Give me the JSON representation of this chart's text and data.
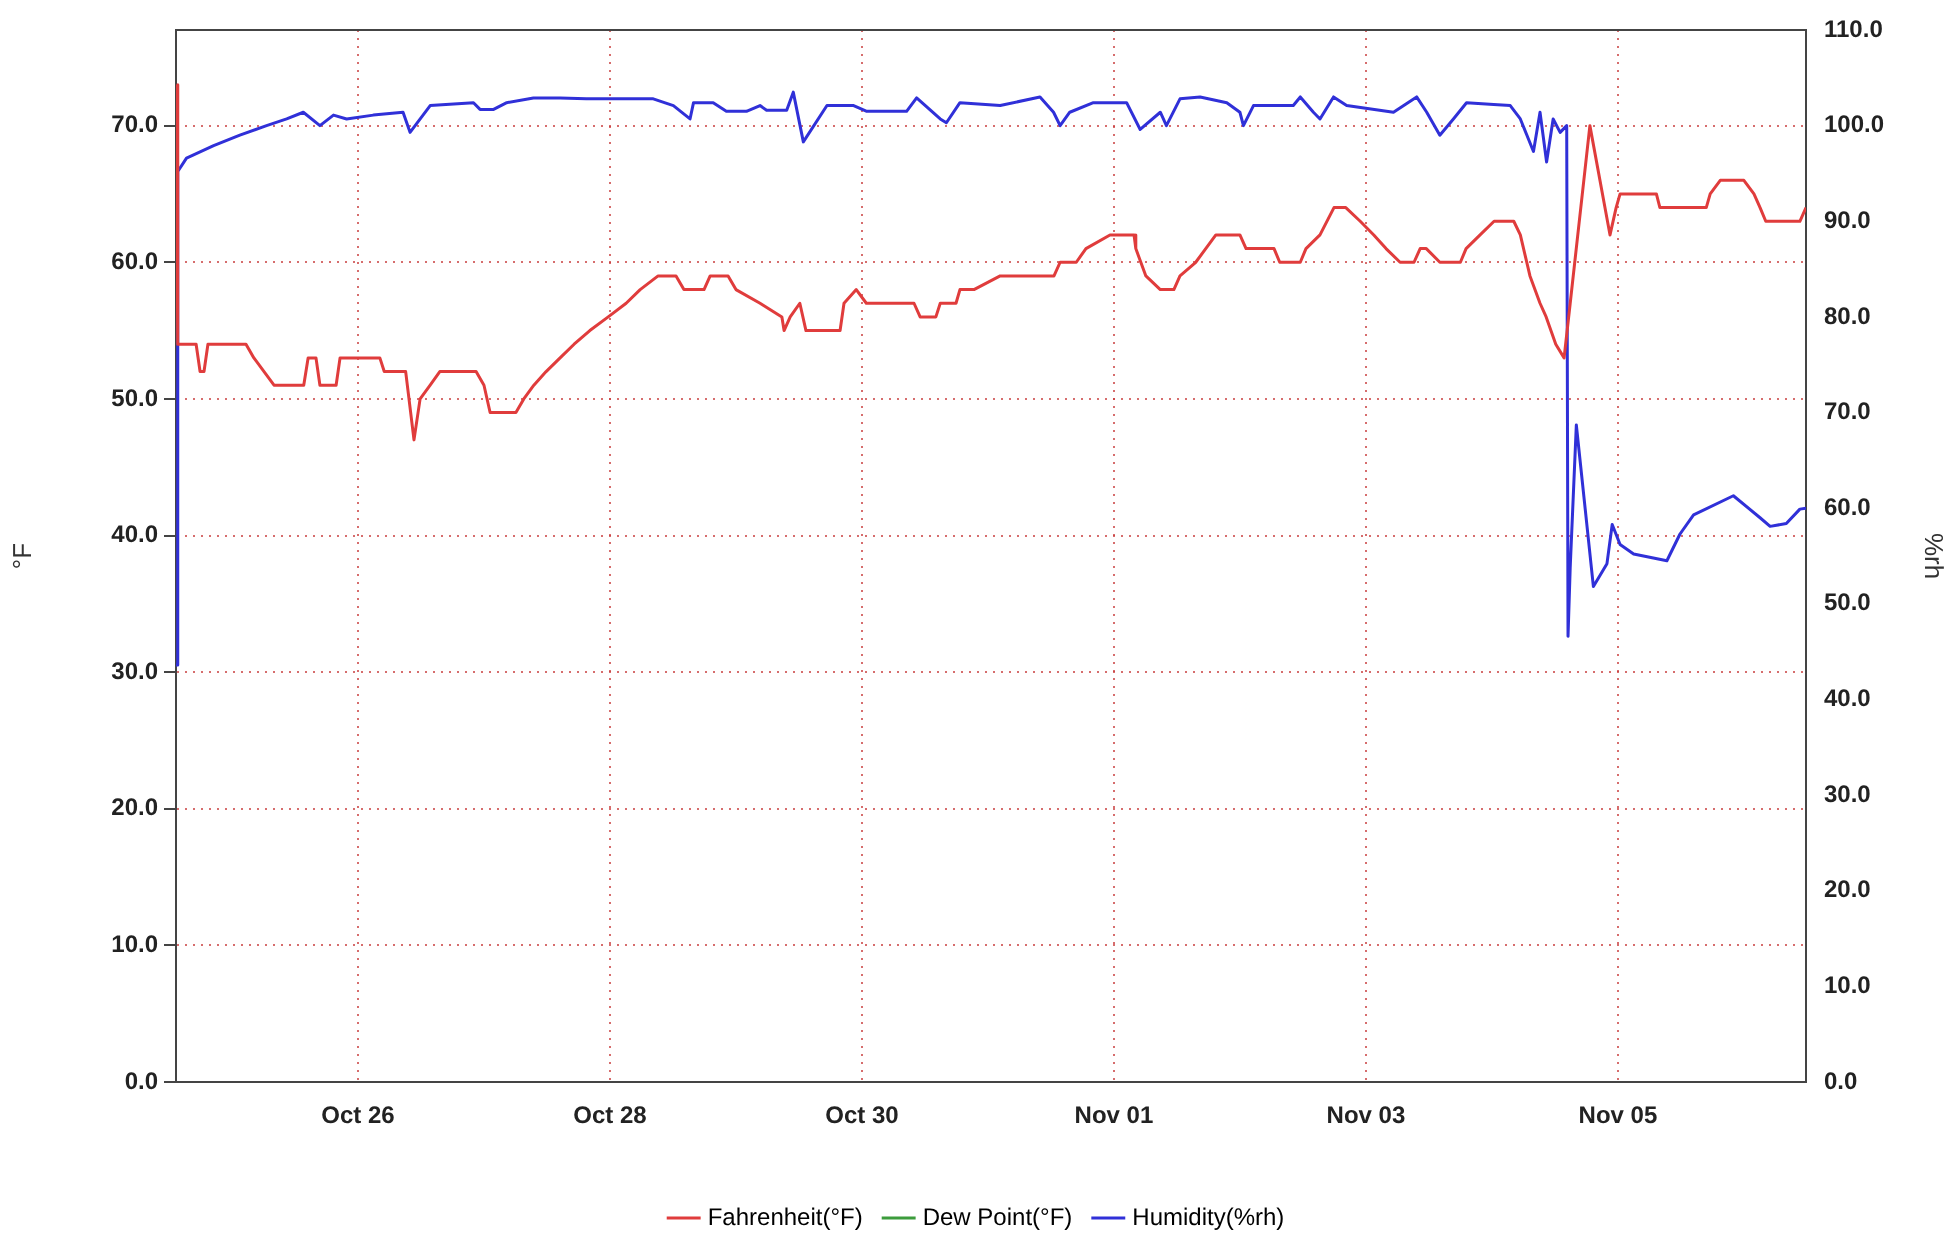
{
  "chart_data": {
    "type": "line",
    "ylabel": "°F",
    "y2label": "%rh",
    "xlim": [
      "--10-24T13:20",
      "--11-06T11:50"
    ],
    "xticks": [
      {
        "value": "--10-26",
        "label": "Oct 26"
      },
      {
        "value": "--10-28",
        "label": "Oct 28"
      },
      {
        "value": "--10-30",
        "label": "Oct 30"
      },
      {
        "value": "--11-01",
        "label": "Nov 01"
      },
      {
        "value": "--11-03",
        "label": "Nov 03"
      },
      {
        "value": "--11-05",
        "label": "Nov 05"
      }
    ],
    "ylim": [
      0,
      77
    ],
    "yticks": [
      {
        "value": 0,
        "label": "0.0"
      },
      {
        "value": 10,
        "label": "10.0"
      },
      {
        "value": 20,
        "label": "20.0"
      },
      {
        "value": 30,
        "label": "30.0"
      },
      {
        "value": 40,
        "label": "40.0"
      },
      {
        "value": 50,
        "label": "50.0"
      },
      {
        "value": 60,
        "label": "60.0"
      },
      {
        "value": 70,
        "label": "70.0"
      }
    ],
    "y2lim": [
      0,
      110
    ],
    "y2ticks": [
      {
        "value": 0,
        "label": "0.0"
      },
      {
        "value": 10,
        "label": "10.0"
      },
      {
        "value": 20,
        "label": "20.0"
      },
      {
        "value": 30,
        "label": "30.0"
      },
      {
        "value": 40,
        "label": "40.0"
      },
      {
        "value": 50,
        "label": "50.0"
      },
      {
        "value": 60,
        "label": "60.0"
      },
      {
        "value": 70,
        "label": "70.0"
      },
      {
        "value": 80,
        "label": "80.0"
      },
      {
        "value": 90,
        "label": "90.0"
      },
      {
        "value": 100,
        "label": "100.0"
      },
      {
        "value": 110,
        "label": "110.0"
      }
    ],
    "grid": true,
    "legend": "bottom",
    "marker": "none",
    "line_style": "solid",
    "series": [
      {
        "name": "Fahrenheit(°F)",
        "color": "#e03c3c",
        "x": [
          "--10-24T13:20",
          "--10-24T13:40",
          "--10-24T17:10",
          "--10-24T17:55",
          "--10-24T18:40",
          "--10-24T19:25",
          "--10-25T02:40",
          "--10-25T04:10",
          "--10-25T08:00",
          "--10-25T13:40",
          "--10-25T14:30",
          "--10-25T16:00",
          "--10-25T16:45",
          "--10-25T19:50",
          "--10-25T20:35",
          "--10-26T04:10",
          "--10-26T05:00",
          "--10-26T09:05",
          "--10-26T10:40",
          "--10-26T11:50",
          "--10-26T13:45",
          "--10-26T15:35",
          "--10-26T22:30",
          "--10-27T00:00",
          "--10-27T01:10",
          "--10-27T06:05",
          "--10-27T07:35",
          "--10-27T09:30",
          "--10-27T11:50",
          "--10-27T14:30",
          "--10-27T17:10",
          "--10-27T20:10",
          "--10-27T23:40",
          "--10-28T03:05",
          "--10-28T05:45",
          "--10-28T09:10",
          "--10-28T12:35",
          "--10-28T14:05",
          "--10-28T17:55",
          "--10-28T19:05",
          "--10-28T22:30",
          "--10-29T00:00",
          "--10-29T04:35",
          "--10-29T08:45",
          "--10-29T09:10",
          "--10-29T10:20",
          "--10-29T12:10",
          "--10-29T13:20",
          "--10-29T19:50",
          "--10-29T20:35",
          "--10-29T22:55",
          "--10-30T00:50",
          "--10-30T09:55",
          "--10-30T11:05",
          "--10-30T14:05",
          "--10-30T14:55",
          "--10-30T17:55",
          "--10-30T18:40",
          "--10-30T21:20",
          "--10-31T02:20",
          "--10-31T12:35",
          "--10-31T13:45",
          "--10-31T16:50",
          "--10-31T18:40",
          "--10-31T23:15",
          "--11-01T03:50",
          "--11-01T04:10",
          "--11-01T06:05",
          "--11-01T08:50",
          "--11-01T11:25",
          "--11-01T12:35",
          "--11-01T15:35",
          "--11-01T19:25",
          "--11-02T00:00",
          "--11-02T01:10",
          "--11-02T06:30",
          "--11-02T07:35",
          "--11-02T11:30",
          "--11-02T12:35",
          "--11-02T15:15",
          "--11-02T17:55",
          "--11-02T20:10",
          "--11-02T22:55",
          "--11-03T01:30",
          "--11-03T03:50",
          "--11-03T06:30",
          "--11-03T09:10",
          "--11-03T10:20",
          "--11-03T11:30",
          "--11-03T14:05",
          "--11-03T18:00",
          "--11-03T19:05",
          "--11-03T21:45",
          "--11-04T00:25",
          "--11-04T04:10",
          "--11-04T05:25",
          "--11-04T07:15",
          "--11-04T09:10",
          "--11-04T10:20",
          "--11-04T12:10",
          "--11-04T13:45",
          "--11-04T14:05",
          "--11-04T14:55",
          "--11-04T18:40",
          "--11-04T22:30",
          "--11-04T23:40",
          "--11-05T00:25",
          "--11-05T07:20",
          "--11-05T08:00",
          "--11-05T16:50",
          "--11-05T17:35",
          "--11-05T19:30",
          "--11-06T00:00",
          "--11-06T01:55",
          "--11-06T03:05",
          "--11-06T04:10",
          "--11-06T10:40",
          "--11-06T11:50"
        ],
        "values": [
          73,
          54,
          54,
          52,
          52,
          54,
          54,
          53,
          51,
          51,
          53,
          53,
          51,
          51,
          53,
          53,
          52,
          52,
          47,
          50,
          51,
          52,
          52,
          51,
          49,
          49,
          50,
          51,
          52,
          53,
          54,
          55,
          56,
          57,
          58,
          59,
          59,
          58,
          58,
          59,
          59,
          58,
          57,
          56,
          55,
          56,
          57,
          55,
          55,
          57,
          58,
          57,
          57,
          56,
          56,
          57,
          57,
          58,
          58,
          59,
          59,
          60,
          60,
          61,
          62,
          62,
          61,
          59,
          58,
          58,
          59,
          60,
          62,
          62,
          61,
          61,
          60,
          60,
          61,
          62,
          64,
          64,
          63,
          62,
          61,
          60,
          60,
          61,
          61,
          60,
          60,
          61,
          62,
          63,
          63,
          62,
          59,
          57,
          56,
          54,
          53,
          53,
          57,
          70,
          62,
          64,
          65,
          65,
          64,
          64,
          65,
          66,
          66,
          65,
          64,
          63,
          63,
          64
        ]
      },
      {
        "name": "Dew Point(°F)",
        "color": "#3c9c3c"
      },
      {
        "name": "Humidity(%rh)",
        "color": "#3030d8",
        "axis": "y2",
        "x": [
          "--10-24T13:20",
          "--10-24T13:40",
          "--10-24T15:20",
          "--10-24T20:30",
          "--10-25T01:30",
          "--10-25T06:35",
          "--10-25T10:25",
          "--10-25T13:35",
          "--10-25T16:45",
          "--10-25T19:20",
          "--10-25T21:50",
          "--10-26T02:55",
          "--10-26T08:35",
          "--10-26T09:55",
          "--10-26T13:45",
          "--10-26T22:00",
          "--10-26T23:15",
          "--10-27T01:50",
          "--10-27T04:20",
          "--10-27T09:25",
          "--10-27T14:30",
          "--10-27T19:30",
          "--10-28T08:15",
          "--10-28T12:05",
          "--10-28T15:15",
          "--10-28T15:55",
          "--10-28T19:40",
          "--10-28T22:10",
          "--10-29T02:00",
          "--10-29T04:35",
          "--10-29T05:50",
          "--10-29T09:40",
          "--10-29T10:55",
          "--10-29T12:50",
          "--10-29T17:20",
          "--10-29T22:25",
          "--10-30T00:55",
          "--10-30T08:30",
          "--10-30T10:25",
          "--10-30T14:55",
          "--10-30T16:05",
          "--10-30T18:40",
          "--10-31T02:20",
          "--10-31T09:55",
          "--10-31T12:30",
          "--10-31T13:45",
          "--10-31T15:35",
          "--10-31T20:05",
          "--11-01T02:25",
          "--11-01T05:00",
          "--11-01T08:50",
          "--11-01T10:00",
          "--11-01T12:35",
          "--11-01T16:25",
          "--11-01T21:30",
          "--11-02T00:00",
          "--11-02T00:40",
          "--11-02T02:35",
          "--11-02T10:10",
          "--11-02T11:30",
          "--11-02T14:00",
          "--11-02T15:15",
          "--11-02T17:50",
          "--11-02T20:20",
          "--11-03T05:15",
          "--11-03T09:40",
          "--11-03T11:35",
          "--11-03T14:05",
          "--11-03T16:40",
          "--11-03T19:10",
          "--11-04T00:20",
          "--11-04T03:30",
          "--11-04T05:25",
          "--11-04T07:55",
          "--11-04T09:10",
          "--11-04T10:25",
          "--11-04T11:40",
          "--11-04T13:00",
          "--11-04T14:15",
          "--11-04T14:30",
          "--11-04T14:55",
          "--11-04T16:05",
          "--11-04T19:20",
          "--11-04T21:55",
          "--11-04T22:55",
          "--11-05T00:25",
          "--11-05T03:00",
          "--11-05T09:20",
          "--11-05T11:50",
          "--11-05T14:25",
          "--11-05T22:00",
          "--11-06T03:05",
          "--11-06T05:00",
          "--11-06T08:05",
          "--11-06T10:40",
          "--11-06T11:50"
        ],
        "values": [
          43.6,
          95.2,
          96.6,
          97.9,
          99.0,
          100.0,
          100.7,
          101.4,
          100.0,
          101.1,
          100.7,
          101.1,
          101.4,
          99.3,
          102.1,
          102.4,
          101.7,
          101.7,
          102.4,
          102.9,
          102.9,
          102.8,
          102.8,
          102.1,
          100.7,
          102.4,
          102.4,
          101.5,
          101.5,
          102.1,
          101.6,
          101.6,
          103.5,
          98.3,
          102.1,
          102.1,
          101.5,
          101.5,
          102.9,
          100.7,
          100.3,
          102.4,
          102.1,
          103.0,
          101.4,
          100.0,
          101.4,
          102.4,
          102.4,
          99.6,
          101.4,
          100.0,
          102.8,
          103.0,
          102.4,
          101.4,
          100.0,
          102.1,
          102.1,
          103.0,
          101.4,
          100.7,
          103.0,
          102.1,
          101.4,
          103.0,
          101.4,
          99.0,
          100.7,
          102.4,
          102.2,
          102.1,
          100.7,
          97.3,
          101.4,
          96.2,
          100.7,
          99.3,
          100.0,
          46.6,
          53.8,
          68.7,
          51.8,
          54.2,
          58.3,
          56.2,
          55.2,
          54.5,
          57.3,
          59.3,
          61.3,
          59.0,
          58.1,
          58.4,
          59.9,
          60.0
        ]
      }
    ]
  }
}
